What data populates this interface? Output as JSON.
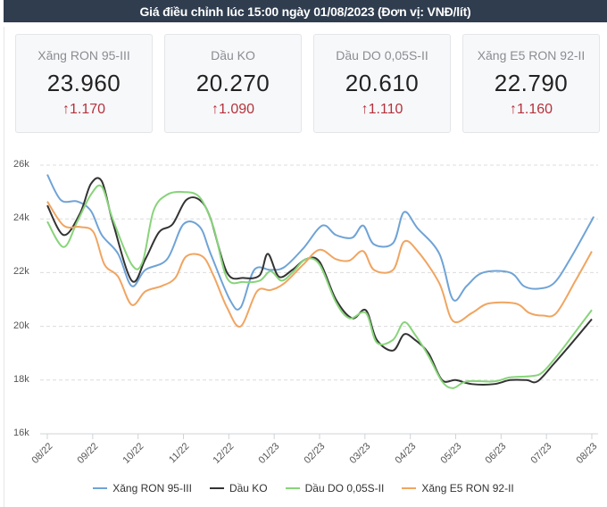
{
  "header": {
    "title": "Giá điều chỉnh lúc 15:00 ngày 01/08/2023 (Đơn vị: VNĐ/lít)"
  },
  "cards": [
    {
      "name": "Xăng RON 95-III",
      "price": "23.960",
      "delta": "1.170",
      "arrow": "↑"
    },
    {
      "name": "Dầu KO",
      "price": "20.270",
      "delta": "1.090",
      "arrow": "↑"
    },
    {
      "name": "Dầu DO 0,05S-II",
      "price": "20.610",
      "delta": "1.110",
      "arrow": "↑"
    },
    {
      "name": "Xăng E5 RON 92-II",
      "price": "22.790",
      "delta": "1.160",
      "arrow": "↑"
    }
  ],
  "colors": {
    "up": "#b5323c",
    "header_bg": "#2f3d4f"
  },
  "chart_data": {
    "type": "line",
    "title": "",
    "xlabel": "",
    "ylabel": "",
    "ylim": [
      16000,
      26000
    ],
    "yticks": [
      "16k",
      "18k",
      "20k",
      "22k",
      "24k",
      "26k"
    ],
    "grid": true,
    "legend_position": "bottom",
    "categories": [
      "08/22",
      "09/22",
      "10/22",
      "11/22",
      "12/22",
      "01/23",
      "02/23",
      "03/23",
      "04/23",
      "05/23",
      "06/23",
      "07/23",
      "08/23"
    ],
    "series": [
      {
        "name": "Xăng RON 95-III",
        "color": "#6fa3d6",
        "points": [
          [
            0.0,
            25650
          ],
          [
            0.25,
            24700
          ],
          [
            0.55,
            24650
          ],
          [
            0.8,
            24300
          ],
          [
            1.0,
            23400
          ],
          [
            1.3,
            22700
          ],
          [
            1.55,
            21500
          ],
          [
            1.8,
            22100
          ],
          [
            2.2,
            22500
          ],
          [
            2.5,
            23800
          ],
          [
            2.8,
            23700
          ],
          [
            3.0,
            22700
          ],
          [
            3.35,
            21000
          ],
          [
            3.55,
            20700
          ],
          [
            3.8,
            22100
          ],
          [
            4.1,
            22100
          ],
          [
            4.35,
            22200
          ],
          [
            4.7,
            22900
          ],
          [
            5.05,
            23750
          ],
          [
            5.3,
            23400
          ],
          [
            5.6,
            23300
          ],
          [
            5.8,
            23750
          ],
          [
            6.0,
            23050
          ],
          [
            6.35,
            23100
          ],
          [
            6.55,
            24250
          ],
          [
            6.8,
            23650
          ],
          [
            7.2,
            22700
          ],
          [
            7.45,
            21000
          ],
          [
            7.7,
            21500
          ],
          [
            8.0,
            22000
          ],
          [
            8.5,
            22000
          ],
          [
            8.75,
            21500
          ],
          [
            9.0,
            21400
          ],
          [
            9.3,
            21600
          ],
          [
            9.6,
            22500
          ],
          [
            10.0,
            23950
          ],
          [
            10.0,
            23960
          ]
        ]
      },
      {
        "name": "Dầu KO",
        "color": "#333333",
        "points": [
          [
            0.0,
            24500
          ],
          [
            0.3,
            23400
          ],
          [
            0.6,
            24200
          ],
          [
            0.8,
            25300
          ],
          [
            1.0,
            25400
          ],
          [
            1.2,
            23900
          ],
          [
            1.55,
            21700
          ],
          [
            1.8,
            22500
          ],
          [
            2.05,
            23500
          ],
          [
            2.3,
            23800
          ],
          [
            2.55,
            24700
          ],
          [
            2.8,
            24700
          ],
          [
            3.0,
            24000
          ],
          [
            3.3,
            22000
          ],
          [
            3.6,
            21800
          ],
          [
            3.9,
            21900
          ],
          [
            4.05,
            22700
          ],
          [
            4.25,
            21850
          ],
          [
            4.5,
            22100
          ],
          [
            4.75,
            22500
          ],
          [
            5.0,
            22400
          ],
          [
            5.3,
            21000
          ],
          [
            5.6,
            20300
          ],
          [
            5.85,
            20600
          ],
          [
            6.05,
            19500
          ],
          [
            6.35,
            19100
          ],
          [
            6.55,
            19700
          ],
          [
            6.75,
            19500
          ],
          [
            7.0,
            19000
          ],
          [
            7.25,
            18000
          ],
          [
            7.5,
            18000
          ],
          [
            7.8,
            17850
          ],
          [
            8.2,
            17850
          ],
          [
            8.5,
            18000
          ],
          [
            8.8,
            18000
          ],
          [
            9.0,
            17950
          ],
          [
            9.3,
            18600
          ],
          [
            9.6,
            19300
          ],
          [
            10.0,
            20270
          ]
        ]
      },
      {
        "name": "Dầu DO 0,05S-II",
        "color": "#88d47a",
        "points": [
          [
            0.0,
            23900
          ],
          [
            0.3,
            22950
          ],
          [
            0.55,
            23900
          ],
          [
            0.8,
            24900
          ],
          [
            1.0,
            25200
          ],
          [
            1.2,
            24000
          ],
          [
            1.55,
            22300
          ],
          [
            1.75,
            22400
          ],
          [
            1.95,
            24300
          ],
          [
            2.2,
            24900
          ],
          [
            2.5,
            25000
          ],
          [
            2.8,
            24800
          ],
          [
            3.05,
            23700
          ],
          [
            3.3,
            21800
          ],
          [
            3.6,
            21650
          ],
          [
            3.9,
            21700
          ],
          [
            4.1,
            22050
          ],
          [
            4.3,
            21700
          ],
          [
            4.5,
            22000
          ],
          [
            4.75,
            22500
          ],
          [
            5.0,
            22300
          ],
          [
            5.3,
            20900
          ],
          [
            5.55,
            20300
          ],
          [
            5.85,
            20500
          ],
          [
            6.05,
            19400
          ],
          [
            6.35,
            19500
          ],
          [
            6.55,
            20150
          ],
          [
            6.75,
            19700
          ],
          [
            7.0,
            18900
          ],
          [
            7.25,
            17950
          ],
          [
            7.45,
            17700
          ],
          [
            7.7,
            17950
          ],
          [
            8.2,
            17950
          ],
          [
            8.5,
            18100
          ],
          [
            8.9,
            18150
          ],
          [
            9.1,
            18300
          ],
          [
            9.4,
            19000
          ],
          [
            9.7,
            19800
          ],
          [
            10.0,
            20610
          ]
        ]
      },
      {
        "name": "Xăng E5 RON 92-II",
        "color": "#f0a561",
        "points": [
          [
            0.0,
            24650
          ],
          [
            0.3,
            23750
          ],
          [
            0.6,
            23700
          ],
          [
            0.85,
            23500
          ],
          [
            1.05,
            22300
          ],
          [
            1.3,
            21850
          ],
          [
            1.55,
            20800
          ],
          [
            1.8,
            21300
          ],
          [
            2.1,
            21500
          ],
          [
            2.35,
            21800
          ],
          [
            2.55,
            22600
          ],
          [
            2.85,
            22600
          ],
          [
            3.05,
            21900
          ],
          [
            3.3,
            20700
          ],
          [
            3.55,
            20000
          ],
          [
            3.85,
            21300
          ],
          [
            4.1,
            21350
          ],
          [
            4.35,
            21600
          ],
          [
            4.7,
            22300
          ],
          [
            5.0,
            22850
          ],
          [
            5.3,
            22500
          ],
          [
            5.55,
            22450
          ],
          [
            5.8,
            22800
          ],
          [
            6.0,
            22100
          ],
          [
            6.35,
            22100
          ],
          [
            6.55,
            23150
          ],
          [
            6.8,
            22800
          ],
          [
            7.2,
            21600
          ],
          [
            7.45,
            20200
          ],
          [
            7.8,
            20500
          ],
          [
            8.1,
            20850
          ],
          [
            8.6,
            20850
          ],
          [
            8.85,
            20500
          ],
          [
            9.1,
            20400
          ],
          [
            9.35,
            20500
          ],
          [
            9.7,
            21700
          ],
          [
            10.0,
            22790
          ]
        ]
      }
    ]
  }
}
